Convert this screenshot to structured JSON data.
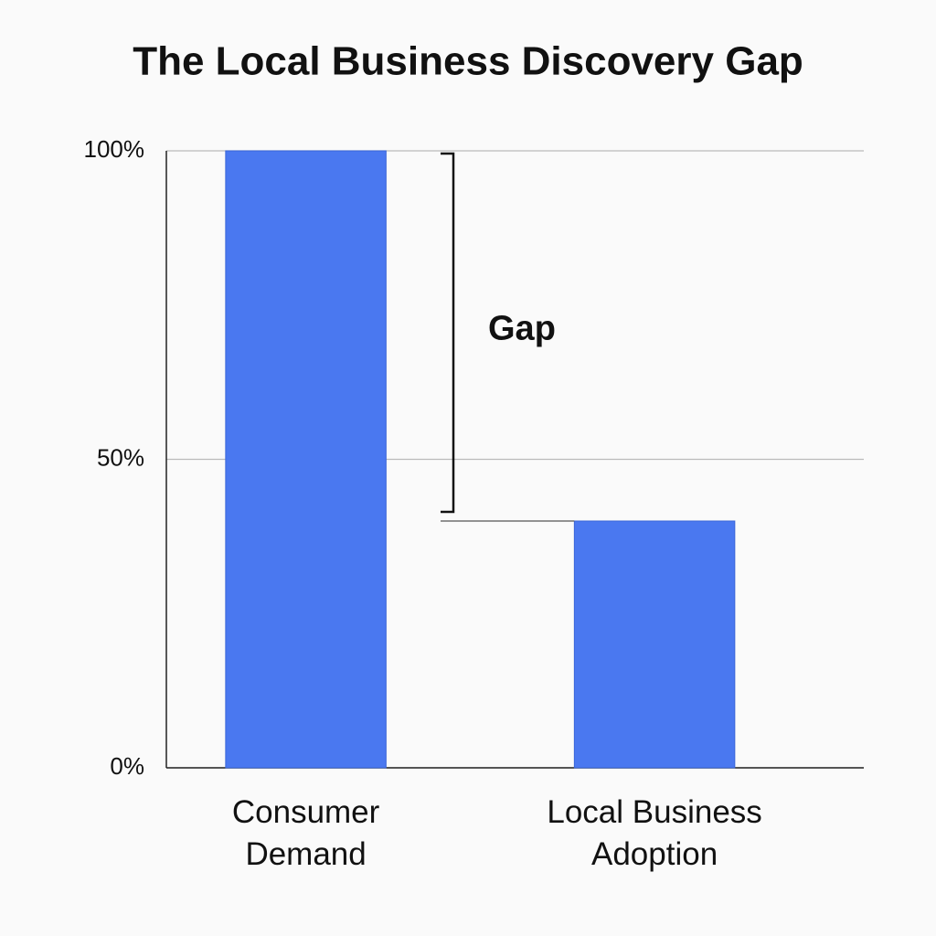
{
  "chart_data": {
    "type": "bar",
    "title": "The Local Business Discovery Gap",
    "categories": [
      "Consumer Demand",
      "Local Business Adoption"
    ],
    "values": [
      100,
      40
    ],
    "color": "#4a78f0",
    "ylim": [
      0,
      100
    ],
    "yticks": [
      {
        "value": 0,
        "label": "0%"
      },
      {
        "value": 50,
        "label": "50%"
      },
      {
        "value": 100,
        "label": "100%"
      }
    ],
    "grid": true,
    "annotation": "Gap"
  }
}
